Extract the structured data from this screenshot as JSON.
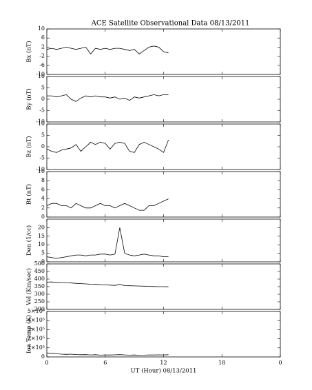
{
  "chart_data": [
    {
      "type": "line",
      "title": "ACE Satellite Observational Data   08/13/2011",
      "ylabel": "Bx (nT)",
      "x": [
        0,
        0.5,
        1,
        1.5,
        2,
        2.5,
        3,
        3.5,
        4,
        4.5,
        5,
        5.5,
        6,
        6.5,
        7,
        7.5,
        8,
        8.5,
        9,
        9.5,
        10,
        10.5,
        11,
        11.5,
        12,
        12.5
      ],
      "series": [
        {
          "color": "#000000",
          "values": [
            1,
            1.5,
            1,
            1.5,
            2,
            1.5,
            1,
            1.5,
            2,
            -1,
            1.5,
            1,
            1.5,
            1,
            1.5,
            1.5,
            1,
            0.5,
            1,
            -1,
            0.5,
            2,
            2.5,
            2,
            0,
            -0.5
          ]
        }
      ],
      "xlim": [
        0,
        24
      ],
      "xticks": [
        0,
        6,
        12,
        18,
        {
          "value": 24,
          "label": "0"
        }
      ],
      "ylim": [
        -10,
        10
      ],
      "yticks": [
        -10,
        -6,
        -2,
        2,
        6,
        10
      ]
    },
    {
      "type": "line",
      "ylabel": "By (nT)",
      "x": [
        0,
        0.5,
        1,
        1.5,
        2,
        2.5,
        3,
        3.5,
        4,
        4.5,
        5,
        5.5,
        6,
        6.5,
        7,
        7.5,
        8,
        8.5,
        9,
        9.5,
        10,
        10.5,
        11,
        11.5,
        12,
        12.5
      ],
      "series": [
        {
          "color": "#000000",
          "values": [
            1.5,
            1.5,
            1,
            1.5,
            2,
            0,
            -1,
            0.5,
            1.5,
            1,
            1.5,
            1,
            1,
            0.5,
            1,
            0,
            0.5,
            -0.5,
            1,
            0.5,
            1,
            1.5,
            2,
            1.5,
            2,
            2
          ]
        }
      ],
      "xlim": [
        0,
        24
      ],
      "xticks": [
        0,
        6,
        12,
        18,
        {
          "value": 24,
          "label": "0"
        }
      ],
      "ylim": [
        -10,
        10
      ],
      "yticks": [
        -10,
        -5,
        0,
        5,
        10
      ]
    },
    {
      "type": "line",
      "ylabel": "Bz (nT)",
      "x": [
        0,
        0.5,
        1,
        1.5,
        2,
        2.5,
        3,
        3.5,
        4,
        4.5,
        5,
        5.5,
        6,
        6.5,
        7,
        7.5,
        8,
        8.5,
        9,
        9.5,
        10,
        10.5,
        11,
        11.5,
        12,
        12.5
      ],
      "series": [
        {
          "color": "#000000",
          "values": [
            -1,
            -2,
            -2.5,
            -1.5,
            -1,
            -0.5,
            1,
            -2,
            0,
            2,
            1,
            2,
            1.5,
            -1,
            1.5,
            2,
            1.5,
            -2,
            -2.5,
            1,
            2,
            1,
            0,
            -1,
            -2.5,
            3
          ]
        }
      ],
      "xlim": [
        0,
        24
      ],
      "xticks": [
        0,
        6,
        12,
        18,
        {
          "value": 24,
          "label": "0"
        }
      ],
      "ylim": [
        -10,
        10
      ],
      "yticks": [
        -10,
        -5,
        0,
        5,
        10
      ]
    },
    {
      "type": "line",
      "ylabel": "Bt (nT)",
      "x": [
        0,
        0.5,
        1,
        1.5,
        2,
        2.5,
        3,
        3.5,
        4,
        4.5,
        5,
        5.5,
        6,
        6.5,
        7,
        7.5,
        8,
        8.5,
        9,
        9.5,
        10,
        10.5,
        11,
        11.5,
        12,
        12.5
      ],
      "series": [
        {
          "color": "#000000",
          "values": [
            2.5,
            3,
            3,
            2.5,
            2.5,
            2,
            3,
            2.5,
            2,
            2,
            2.5,
            3,
            2.5,
            2.5,
            2,
            2.5,
            3,
            2.5,
            2,
            1.5,
            1.5,
            2.5,
            2.5,
            3,
            3.5,
            4
          ]
        }
      ],
      "xlim": [
        0,
        24
      ],
      "xticks": [
        0,
        6,
        12,
        18,
        {
          "value": 24,
          "label": "0"
        }
      ],
      "ylim": [
        0,
        10
      ],
      "yticks": [
        0,
        2,
        4,
        6,
        8,
        10
      ]
    },
    {
      "type": "line",
      "ylabel": "Den (1/cc)",
      "x": [
        0,
        0.5,
        1,
        1.5,
        2,
        2.5,
        3,
        3.5,
        4,
        4.5,
        5,
        5.5,
        6,
        6.5,
        7,
        7.5,
        8,
        8.5,
        9,
        9.5,
        10,
        10.5,
        11,
        11.5,
        12,
        12.5
      ],
      "series": [
        {
          "color": "#000000",
          "values": [
            3,
            2.5,
            2,
            2.5,
            3,
            3.5,
            4,
            4,
            3.5,
            4,
            4,
            4.5,
            4.5,
            4,
            4.5,
            20,
            5,
            4,
            3.5,
            4,
            4.5,
            4,
            3.5,
            3.5,
            3,
            3
          ]
        }
      ],
      "xlim": [
        0,
        24
      ],
      "xticks": [
        0,
        6,
        12,
        18,
        {
          "value": 24,
          "label": "0"
        }
      ],
      "ylim": [
        0,
        25
      ],
      "yticks": [
        0,
        5,
        10,
        15,
        20
      ]
    },
    {
      "type": "line",
      "ylabel": "Vel (Km/sec)",
      "x": [
        0,
        0.5,
        1,
        1.5,
        2,
        2.5,
        3,
        3.5,
        4,
        4.5,
        5,
        5.5,
        6,
        6.5,
        7,
        7.5,
        8,
        8.5,
        9,
        9.5,
        10,
        10.5,
        11,
        11.5,
        12,
        12.5
      ],
      "series": [
        {
          "color": "#000000",
          "values": [
            380,
            381,
            378,
            377,
            375,
            374,
            372,
            370,
            368,
            366,
            365,
            363,
            362,
            360,
            358,
            365,
            357,
            356,
            355,
            354,
            353,
            352,
            351,
            350,
            350,
            349
          ]
        }
      ],
      "xlim": [
        0,
        24
      ],
      "xticks": [
        0,
        6,
        12,
        18,
        {
          "value": 24,
          "label": "0"
        }
      ],
      "ylim": [
        200,
        500
      ],
      "yticks": [
        200,
        250,
        300,
        350,
        400,
        450,
        500
      ]
    },
    {
      "type": "line",
      "ylabel": "Ion Temp (K)",
      "xlabel": "UT (Hour)  08/13/2011",
      "x": [
        0,
        0.5,
        1,
        1.5,
        2,
        2.5,
        3,
        3.5,
        4,
        4.5,
        5,
        5.5,
        6,
        6.5,
        7,
        7.5,
        8,
        8.5,
        9,
        9.5,
        10,
        10.5,
        11,
        11.5,
        12,
        12.5
      ],
      "series": [
        {
          "color": "#000000",
          "values": [
            45000,
            40000,
            35000,
            30000,
            28000,
            30000,
            26000,
            24000,
            25000,
            22000,
            24000,
            20000,
            22000,
            21000,
            23000,
            25000,
            22000,
            20000,
            21000,
            19000,
            20000,
            22000,
            21000,
            23000,
            22000,
            24000
          ]
        }
      ],
      "xlim": [
        0,
        24
      ],
      "xticks": [
        0,
        6,
        12,
        18,
        {
          "value": 24,
          "label": "0"
        }
      ],
      "ylim": [
        0,
        500000
      ],
      "yticks": [
        0,
        {
          "value": 100000,
          "label": "1×10⁵"
        },
        {
          "value": 200000,
          "label": "2×10⁵"
        },
        {
          "value": 300000,
          "label": "3×10⁵"
        },
        {
          "value": 400000,
          "label": "4×10⁵"
        },
        {
          "value": 500000,
          "label": "5×10⁵"
        }
      ]
    }
  ]
}
